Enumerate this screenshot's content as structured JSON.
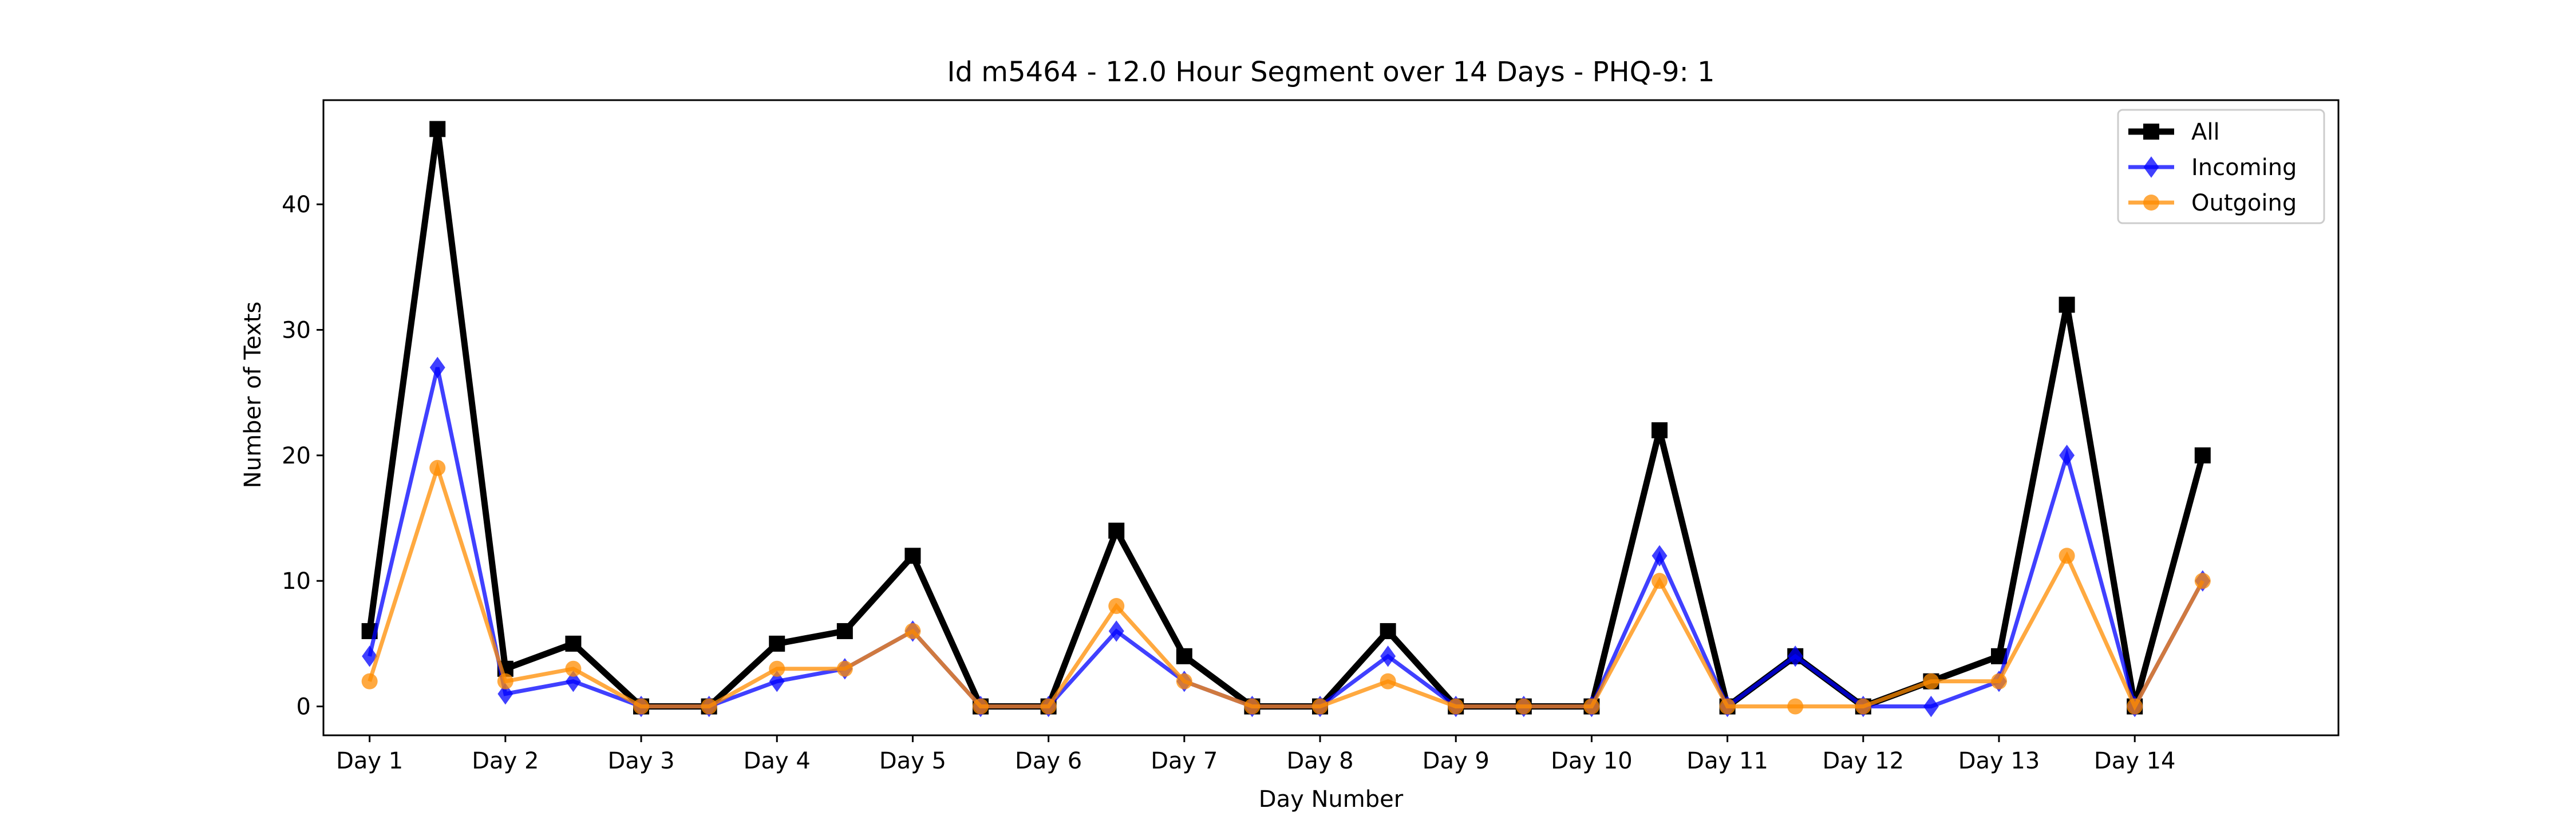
{
  "chart_data": {
    "type": "line",
    "title": "Id m5464 - 12.0 Hour Segment over 14 Days - PHQ-9: 1",
    "xlabel": "Day Number",
    "ylabel": "Number of Texts",
    "x_tick_labels": [
      "Day 1",
      "Day 2",
      "Day 3",
      "Day 4",
      "Day 5",
      "Day 6",
      "Day 7",
      "Day 8",
      "Day 9",
      "Day 10",
      "Day 11",
      "Day 12",
      "Day 13",
      "Day 14"
    ],
    "x": [
      1,
      1.5,
      2,
      2.5,
      3,
      3.5,
      4,
      4.5,
      5,
      5.5,
      6,
      6.5,
      7,
      7.5,
      8,
      8.5,
      9,
      9.5,
      10,
      10.5,
      11,
      11.5,
      12,
      12.5,
      13,
      13.5,
      14,
      14.5
    ],
    "xlim": [
      0.66,
      15.5
    ],
    "ylim": [
      -2.3,
      48.3
    ],
    "y_ticks": [
      0,
      10,
      20,
      30,
      40
    ],
    "grid": false,
    "legend_position": "top-right",
    "series": [
      {
        "name": "All",
        "color": "#000000",
        "marker": "square",
        "values": [
          6,
          46,
          3,
          5,
          0,
          0,
          5,
          6,
          12,
          0,
          0,
          14,
          4,
          0,
          0,
          6,
          0,
          0,
          0,
          22,
          0,
          4,
          0,
          2,
          4,
          32,
          0,
          20
        ]
      },
      {
        "name": "Incoming",
        "color": "#0000ff",
        "marker": "diamond",
        "values": [
          4,
          27,
          1,
          2,
          0,
          0,
          2,
          3,
          6,
          0,
          0,
          6,
          2,
          0,
          0,
          4,
          0,
          0,
          0,
          12,
          0,
          4,
          0,
          0,
          2,
          20,
          0,
          10
        ]
      },
      {
        "name": "Outgoing",
        "color": "#ff8c00",
        "marker": "circle",
        "values": [
          2,
          19,
          2,
          3,
          0,
          0,
          3,
          3,
          6,
          0,
          0,
          8,
          2,
          0,
          0,
          2,
          0,
          0,
          0,
          10,
          0,
          0,
          0,
          2,
          2,
          12,
          0,
          10
        ]
      }
    ]
  }
}
